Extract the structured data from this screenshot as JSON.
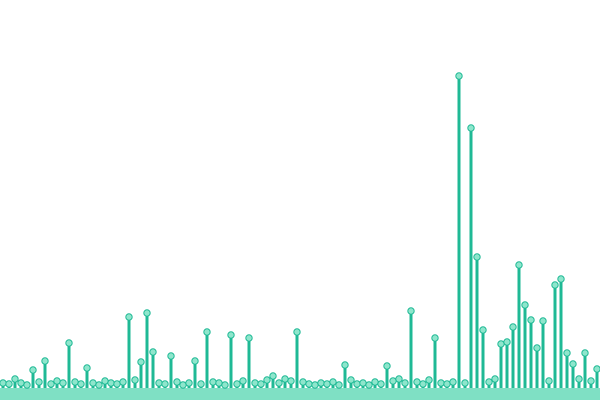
{
  "chart_data": {
    "type": "lollipop",
    "categories": [
      null,
      null,
      null,
      null,
      null,
      null,
      null,
      null,
      null,
      null,
      null,
      null,
      null,
      null,
      null,
      null,
      null,
      null,
      null,
      null,
      null,
      null,
      null,
      null,
      null,
      null,
      null,
      null,
      null,
      null,
      null,
      null,
      null,
      null,
      null,
      null,
      null,
      null,
      null,
      null,
      null,
      null,
      null,
      null,
      null,
      null,
      null,
      null,
      null,
      null,
      null,
      null,
      null,
      null,
      null,
      null,
      null,
      null,
      null,
      null,
      null,
      null,
      null,
      null,
      null,
      null,
      null,
      null,
      null,
      null,
      null,
      null,
      null,
      null,
      null,
      null,
      null,
      null,
      null,
      null,
      null,
      null,
      null,
      null,
      null,
      null,
      null,
      null,
      null,
      null,
      null,
      null,
      null,
      null,
      null,
      null,
      null,
      null,
      null,
      null
    ],
    "values": [
      5,
      4,
      9,
      5,
      3,
      18,
      6,
      27,
      4,
      7,
      5,
      45,
      6,
      4,
      20,
      5,
      3,
      7,
      5,
      4,
      6,
      71,
      8,
      26,
      75,
      36,
      5,
      4,
      32,
      6,
      3,
      5,
      27,
      4,
      56,
      6,
      5,
      3,
      53,
      4,
      7,
      50,
      5,
      4,
      8,
      12,
      5,
      9,
      7,
      56,
      6,
      4,
      3,
      5,
      4,
      6,
      3,
      23,
      8,
      4,
      5,
      3,
      6,
      4,
      22,
      7,
      9,
      5,
      77,
      6,
      4,
      8,
      50,
      5,
      4,
      6,
      312,
      5,
      260,
      131,
      58,
      6,
      9,
      44,
      46,
      61,
      123,
      83,
      68,
      40,
      67,
      7,
      103,
      109,
      35,
      24,
      9,
      35,
      7,
      19
    ],
    "color": "#1fb995",
    "ylim": [
      0,
      330
    ]
  }
}
